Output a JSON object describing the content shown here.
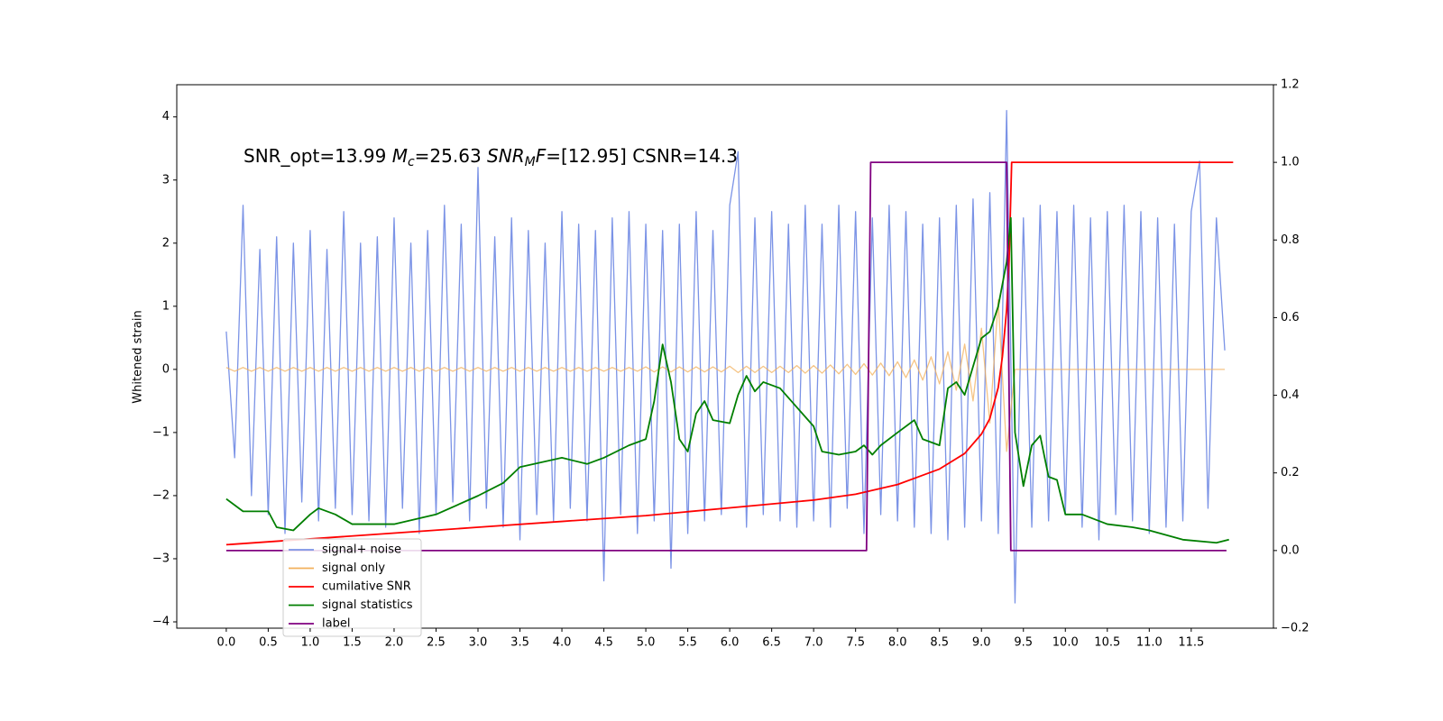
{
  "chart_data": {
    "type": "line",
    "annotation": [
      "SNR_opt=13.99 ",
      "M",
      "c",
      "=25.63  ",
      "SNR",
      "M",
      "F",
      "=[12.95] CSNR=14.3"
    ],
    "ylabel": "Whitened strain",
    "xlim": [
      -0.59,
      12.48
    ],
    "ylim": [
      -4.1,
      4.51
    ],
    "y2lim": [
      -0.2,
      1.2
    ],
    "xticks": [
      {
        "value": 0,
        "label": "0.0"
      },
      {
        "value": 0.5,
        "label": "0.5"
      },
      {
        "value": 1,
        "label": "1.0"
      },
      {
        "value": 1.5,
        "label": "1.5"
      },
      {
        "value": 2,
        "label": "2.0"
      },
      {
        "value": 2.5,
        "label": "2.5"
      },
      {
        "value": 3,
        "label": "3.0"
      },
      {
        "value": 3.5,
        "label": "3.5"
      },
      {
        "value": 4,
        "label": "4.0"
      },
      {
        "value": 4.5,
        "label": "4.5"
      },
      {
        "value": 5,
        "label": "5.0"
      },
      {
        "value": 5.5,
        "label": "5.5"
      },
      {
        "value": 6,
        "label": "6.0"
      },
      {
        "value": 6.5,
        "label": "6.5"
      },
      {
        "value": 7,
        "label": "7.0"
      },
      {
        "value": 7.5,
        "label": "7.5"
      },
      {
        "value": 8,
        "label": "8.0"
      },
      {
        "value": 8.5,
        "label": "8.5"
      },
      {
        "value": 9,
        "label": "9.0"
      },
      {
        "value": 9.5,
        "label": "9.5"
      },
      {
        "value": 10,
        "label": "10.0"
      },
      {
        "value": 10.5,
        "label": "10.5"
      },
      {
        "value": 11,
        "label": "11.0"
      },
      {
        "value": 11.5,
        "label": "11.5"
      }
    ],
    "yticks": [
      {
        "value": -4,
        "label": "−4"
      },
      {
        "value": -3,
        "label": "−3"
      },
      {
        "value": -2,
        "label": "−2"
      },
      {
        "value": -1,
        "label": "−1"
      },
      0,
      1,
      2,
      3,
      4
    ],
    "y2ticks": [
      {
        "value": -0.2,
        "label": "−0.2"
      },
      {
        "value": 0,
        "label": "0.0"
      },
      0.2,
      0.4,
      0.6,
      0.8,
      {
        "value": 1,
        "label": "1.0"
      },
      1.2
    ],
    "x": [
      0,
      0.1,
      0.2,
      0.3,
      0.4,
      0.5,
      0.6,
      0.7,
      0.8,
      0.9,
      1,
      1.1,
      1.2,
      1.3,
      1.4,
      1.5,
      1.6,
      1.7,
      1.8,
      1.9,
      2,
      2.1,
      2.2,
      2.3,
      2.4,
      2.5,
      2.6,
      2.7,
      2.8,
      2.9,
      3,
      3.1,
      3.2,
      3.3,
      3.4,
      3.5,
      3.6,
      3.7,
      3.8,
      3.9,
      4,
      4.1,
      4.2,
      4.3,
      4.4,
      4.5,
      4.6,
      4.7,
      4.8,
      4.9,
      5,
      5.1,
      5.2,
      5.3,
      5.4,
      5.5,
      5.6,
      5.7,
      5.8,
      5.9,
      6,
      6.1,
      6.2,
      6.3,
      6.4,
      6.5,
      6.6,
      6.7,
      6.8,
      6.9,
      7,
      7.1,
      7.2,
      7.3,
      7.4,
      7.5,
      7.6,
      7.7,
      7.8,
      7.9,
      8,
      8.1,
      8.2,
      8.3,
      8.4,
      8.5,
      8.6,
      8.7,
      8.8,
      8.9,
      9,
      9.1,
      9.2,
      9.3,
      9.4,
      9.5,
      9.6,
      9.7,
      9.8,
      9.9,
      10,
      10.1,
      10.2,
      10.3,
      10.4,
      10.5,
      10.6,
      10.7,
      10.8,
      10.9,
      11,
      11.1,
      11.2,
      11.3,
      11.4,
      11.5,
      11.6,
      11.7,
      11.8,
      11.9
    ],
    "series": [
      {
        "name": "signal+ noise",
        "color": "#7b93e6",
        "axis": "y",
        "values": [
          0.6,
          -1.4,
          2.6,
          -2.0,
          1.9,
          -2.3,
          2.1,
          -2.6,
          2.0,
          -2.1,
          2.2,
          -2.4,
          1.9,
          -2.2,
          2.5,
          -2.3,
          2.0,
          -2.4,
          2.1,
          -2.5,
          2.4,
          -2.2,
          2.0,
          -2.6,
          2.2,
          -2.3,
          2.6,
          -2.1,
          2.3,
          -2.4,
          3.2,
          -2.2,
          2.1,
          -2.5,
          2.4,
          -2.7,
          2.2,
          -2.3,
          2.0,
          -2.4,
          2.5,
          -2.2,
          2.3,
          -2.4,
          2.2,
          -3.35,
          2.4,
          -2.3,
          2.5,
          -2.6,
          2.3,
          -2.4,
          2.2,
          -3.15,
          2.3,
          -2.6,
          2.5,
          -2.4,
          2.2,
          -2.3,
          2.6,
          3.45,
          -2.5,
          2.4,
          -2.3,
          2.5,
          -2.4,
          2.3,
          -2.5,
          2.6,
          -2.4,
          2.3,
          -2.5,
          2.6,
          -2.2,
          2.5,
          -2.6,
          2.4,
          -2.3,
          2.6,
          -2.4,
          2.5,
          -2.5,
          2.3,
          -2.6,
          2.4,
          -2.7,
          2.6,
          -2.5,
          2.7,
          -2.4,
          2.8,
          -2.6,
          4.1,
          -3.7,
          2.4,
          -2.5,
          2.6,
          -2.4,
          2.5,
          -2.3,
          2.6,
          -2.5,
          2.4,
          -2.7,
          2.5,
          -2.3,
          2.6,
          -2.4,
          2.5,
          -2.6,
          2.4,
          -2.5,
          2.3,
          -2.4,
          2.5,
          3.3,
          -2.2,
          2.4,
          0.3
        ]
      },
      {
        "name": "signal only",
        "color": "#f2b05c",
        "axis": "y",
        "values": [
          0.03,
          -0.03,
          0.03,
          -0.03,
          0.03,
          -0.03,
          0.03,
          -0.03,
          0.03,
          -0.03,
          0.03,
          -0.03,
          0.03,
          -0.03,
          0.03,
          -0.03,
          0.03,
          -0.03,
          0.03,
          -0.03,
          0.03,
          -0.03,
          0.03,
          -0.03,
          0.03,
          -0.03,
          0.03,
          -0.03,
          0.03,
          -0.03,
          0.03,
          -0.03,
          0.03,
          -0.03,
          0.03,
          -0.03,
          0.03,
          -0.03,
          0.03,
          -0.03,
          0.03,
          -0.03,
          0.03,
          -0.03,
          0.03,
          -0.03,
          0.03,
          -0.03,
          0.03,
          -0.03,
          0.04,
          -0.04,
          0.04,
          -0.04,
          0.04,
          -0.04,
          0.04,
          -0.04,
          0.04,
          -0.04,
          0.05,
          -0.05,
          0.05,
          -0.05,
          0.05,
          -0.05,
          0.05,
          -0.05,
          0.06,
          -0.06,
          0.06,
          -0.06,
          0.07,
          -0.07,
          0.08,
          -0.08,
          0.09,
          -0.09,
          0.1,
          -0.1,
          0.12,
          -0.13,
          0.15,
          -0.17,
          0.2,
          -0.23,
          0.28,
          -0.33,
          0.4,
          -0.5,
          0.65,
          -0.85,
          1.1,
          -1.3,
          0,
          0,
          0,
          0,
          0,
          0,
          0,
          0,
          0,
          0,
          0,
          0,
          0,
          0,
          0,
          0,
          0,
          0,
          0,
          0,
          0,
          0,
          0,
          0,
          0,
          0
        ]
      },
      {
        "name": "cumilative SNR",
        "color": "#ff0000",
        "axis": "y2",
        "x": [
          0,
          1,
          2,
          3,
          4,
          5,
          6,
          7,
          7.5,
          8,
          8.5,
          8.8,
          9,
          9.1,
          9.2,
          9.25,
          9.3,
          9.33,
          9.36,
          12
        ],
        "values": [
          0.015,
          0.03,
          0.045,
          0.06,
          0.075,
          0.09,
          0.11,
          0.13,
          0.145,
          0.17,
          0.21,
          0.25,
          0.3,
          0.34,
          0.42,
          0.5,
          0.62,
          0.75,
          1,
          1
        ]
      },
      {
        "name": "signal statistics",
        "color": "#007f00",
        "axis": "y2",
        "x": [
          0,
          0.2,
          0.5,
          0.6,
          0.8,
          1,
          1.1,
          1.3,
          1.5,
          2,
          2.5,
          3,
          3.3,
          3.5,
          4,
          4.3,
          4.5,
          4.8,
          5,
          5.1,
          5.2,
          5.3,
          5.4,
          5.5,
          5.6,
          5.7,
          5.8,
          6,
          6.1,
          6.2,
          6.3,
          6.4,
          6.6,
          6.8,
          7,
          7.1,
          7.3,
          7.5,
          7.6,
          7.7,
          7.8,
          8,
          8.2,
          8.3,
          8.5,
          8.6,
          8.7,
          8.8,
          9,
          9.1,
          9.2,
          9.3,
          9.35,
          9.4,
          9.5,
          9.6,
          9.7,
          9.8,
          9.9,
          10,
          10.2,
          10.5,
          10.8,
          11,
          11.4,
          11.8,
          11.95
        ],
        "values": [
          0.133,
          0.101,
          0.101,
          0.06,
          0.052,
          0.093,
          0.109,
          0.093,
          0.068,
          0.068,
          0.093,
          0.141,
          0.174,
          0.215,
          0.239,
          0.223,
          0.239,
          0.271,
          0.287,
          0.385,
          0.531,
          0.434,
          0.287,
          0.255,
          0.353,
          0.385,
          0.336,
          0.328,
          0.401,
          0.45,
          0.41,
          0.434,
          0.418,
          0.369,
          0.32,
          0.255,
          0.247,
          0.255,
          0.271,
          0.247,
          0.271,
          0.304,
          0.336,
          0.287,
          0.271,
          0.418,
          0.434,
          0.401,
          0.547,
          0.564,
          0.629,
          0.743,
          0.857,
          0.304,
          0.166,
          0.271,
          0.296,
          0.19,
          0.182,
          0.093,
          0.093,
          0.068,
          0.06,
          0.052,
          0.028,
          0.02,
          0.028
        ]
      },
      {
        "name": "label",
        "color": "#800080",
        "axis": "y2",
        "x": [
          0,
          7.63,
          7.68,
          9.3,
          9.35,
          11.92
        ],
        "values": [
          0,
          0,
          1,
          1,
          0,
          0
        ]
      }
    ]
  }
}
